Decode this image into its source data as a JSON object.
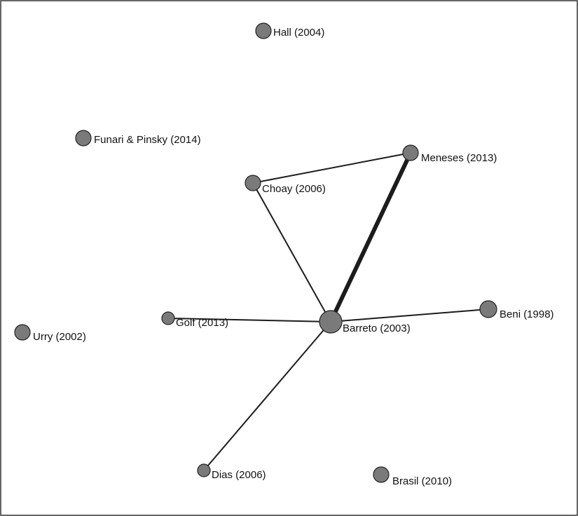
{
  "colors": {
    "node_fill": "#7a7a7a",
    "node_stroke": "#222222",
    "edge": "#1c1c1c",
    "frame": "#333333"
  },
  "nodes": [
    {
      "id": "hall",
      "label": "Hall (2004)",
      "size": "small"
    },
    {
      "id": "funari",
      "label": "Funari & Pinsky (2014)",
      "size": "small"
    },
    {
      "id": "meneses",
      "label": "Meneses (2013)",
      "size": "small"
    },
    {
      "id": "choay",
      "label": "Choay (2006)",
      "size": "small"
    },
    {
      "id": "golf",
      "label": "Golf (2013)",
      "size": "smaller"
    },
    {
      "id": "barreto",
      "label": "Barreto (2003)",
      "size": "large"
    },
    {
      "id": "beni",
      "label": "Beni (1998)",
      "size": "medium"
    },
    {
      "id": "urry",
      "label": "Urry (2002)",
      "size": "small"
    },
    {
      "id": "dias",
      "label": "Dias (2006)",
      "size": "smaller"
    },
    {
      "id": "brasil",
      "label": "Brasil (2010)",
      "size": "small"
    }
  ],
  "edges": [
    {
      "from": "choay",
      "to": "meneses",
      "weight": "thin"
    },
    {
      "from": "choay",
      "to": "barreto",
      "weight": "thin"
    },
    {
      "from": "meneses",
      "to": "barreto",
      "weight": "heavy"
    },
    {
      "from": "golf",
      "to": "barreto",
      "weight": "thin"
    },
    {
      "from": "barreto",
      "to": "beni",
      "weight": "thin"
    },
    {
      "from": "barreto",
      "to": "dias",
      "weight": "thin"
    }
  ]
}
